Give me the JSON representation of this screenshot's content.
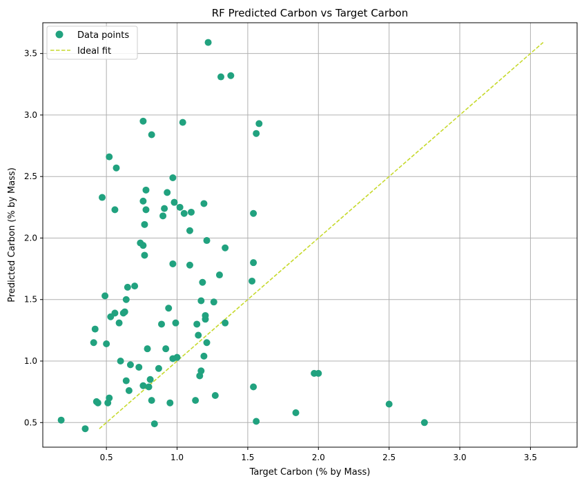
{
  "chart_data": {
    "type": "scatter",
    "title": "RF Predicted Carbon vs Target Carbon",
    "xlabel": "Target Carbon (% by Mass)",
    "ylabel": "Predicted Carbon (% by Mass)",
    "xlim": [
      0.05,
      3.83
    ],
    "ylim": [
      0.3,
      3.75
    ],
    "xticks": [
      "0.5",
      "1.0",
      "1.5",
      "2.0",
      "2.5",
      "3.0",
      "3.5"
    ],
    "yticks": [
      "0.5",
      "1.0",
      "1.5",
      "2.0",
      "2.5",
      "3.0",
      "3.5"
    ],
    "grid": true,
    "legend_position": "top-left",
    "series": [
      {
        "name": "Data points",
        "kind": "scatter",
        "color": "#21a27f",
        "points": [
          [
            0.18,
            0.52
          ],
          [
            0.35,
            0.45
          ],
          [
            0.41,
            1.15
          ],
          [
            0.42,
            1.26
          ],
          [
            0.43,
            0.67
          ],
          [
            0.44,
            0.66
          ],
          [
            0.47,
            2.33
          ],
          [
            0.49,
            1.53
          ],
          [
            0.5,
            1.14
          ],
          [
            0.51,
            0.66
          ],
          [
            0.52,
            0.7
          ],
          [
            0.52,
            2.66
          ],
          [
            0.53,
            1.36
          ],
          [
            0.56,
            2.23
          ],
          [
            0.56,
            1.39
          ],
          [
            0.57,
            2.57
          ],
          [
            0.59,
            1.31
          ],
          [
            0.6,
            1.0
          ],
          [
            0.62,
            1.39
          ],
          [
            0.63,
            1.4
          ],
          [
            0.64,
            1.5
          ],
          [
            0.64,
            0.84
          ],
          [
            0.65,
            1.6
          ],
          [
            0.66,
            0.76
          ],
          [
            0.67,
            0.97
          ],
          [
            0.7,
            1.61
          ],
          [
            0.73,
            0.95
          ],
          [
            0.74,
            1.96
          ],
          [
            0.76,
            1.94
          ],
          [
            0.76,
            2.95
          ],
          [
            0.76,
            2.3
          ],
          [
            0.76,
            0.8
          ],
          [
            0.77,
            1.86
          ],
          [
            0.77,
            2.11
          ],
          [
            0.78,
            2.39
          ],
          [
            0.78,
            2.23
          ],
          [
            0.79,
            1.1
          ],
          [
            0.8,
            0.79
          ],
          [
            0.81,
            0.85
          ],
          [
            0.82,
            0.68
          ],
          [
            0.82,
            2.84
          ],
          [
            0.84,
            0.49
          ],
          [
            0.87,
            0.94
          ],
          [
            0.89,
            1.3
          ],
          [
            0.9,
            2.18
          ],
          [
            0.91,
            2.24
          ],
          [
            0.92,
            1.1
          ],
          [
            0.93,
            2.37
          ],
          [
            0.94,
            1.43
          ],
          [
            0.95,
            0.66
          ],
          [
            0.97,
            2.49
          ],
          [
            0.97,
            1.79
          ],
          [
            0.97,
            1.02
          ],
          [
            0.98,
            2.29
          ],
          [
            0.99,
            1.31
          ],
          [
            1.0,
            1.03
          ],
          [
            1.02,
            2.25
          ],
          [
            1.04,
            2.94
          ],
          [
            1.05,
            2.2
          ],
          [
            1.09,
            1.78
          ],
          [
            1.09,
            2.06
          ],
          [
            1.1,
            2.21
          ],
          [
            1.13,
            0.68
          ],
          [
            1.14,
            1.3
          ],
          [
            1.15,
            1.21
          ],
          [
            1.16,
            0.88
          ],
          [
            1.17,
            0.92
          ],
          [
            1.17,
            1.49
          ],
          [
            1.18,
            1.64
          ],
          [
            1.19,
            1.04
          ],
          [
            1.19,
            2.28
          ],
          [
            1.2,
            1.34
          ],
          [
            1.2,
            1.37
          ],
          [
            1.21,
            1.98
          ],
          [
            1.21,
            1.15
          ],
          [
            1.22,
            3.59
          ],
          [
            1.26,
            1.48
          ],
          [
            1.27,
            0.72
          ],
          [
            1.3,
            1.7
          ],
          [
            1.31,
            3.31
          ],
          [
            1.34,
            1.92
          ],
          [
            1.34,
            1.31
          ],
          [
            1.38,
            3.32
          ],
          [
            1.53,
            1.65
          ],
          [
            1.54,
            2.2
          ],
          [
            1.54,
            1.8
          ],
          [
            1.54,
            0.79
          ],
          [
            1.56,
            2.85
          ],
          [
            1.56,
            0.51
          ],
          [
            1.58,
            2.93
          ],
          [
            1.84,
            0.58
          ],
          [
            1.97,
            0.9
          ],
          [
            2.0,
            0.9
          ],
          [
            2.5,
            0.65
          ],
          [
            2.75,
            0.5
          ]
        ]
      },
      {
        "name": "Ideal fit",
        "kind": "line",
        "color": "#c6d92b",
        "dash": true,
        "points": [
          [
            0.45,
            0.45
          ],
          [
            3.59,
            3.59
          ]
        ]
      }
    ]
  }
}
